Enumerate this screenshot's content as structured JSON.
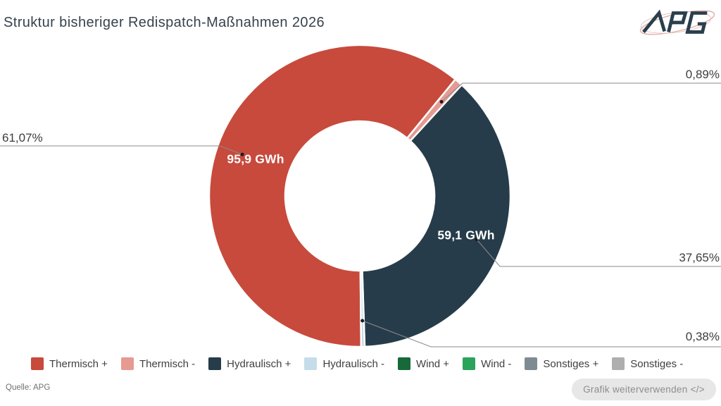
{
  "header": {
    "title": "Struktur bisheriger Redispatch-Maßnahmen 2026",
    "logo": "APG"
  },
  "chart_data": {
    "type": "pie",
    "subtype": "donut",
    "title": "Struktur bisheriger Redispatch-Maßnahmen 2026",
    "unit": "GWh",
    "legend_position": "bottom",
    "start_angle_deg": 179.5,
    "series": [
      {
        "name": "Thermisch +",
        "percent": 61.07,
        "percent_label": "61,07%",
        "value_label": "95,9 GWh",
        "color": "#c74a3c"
      },
      {
        "name": "Thermisch -",
        "percent": 0.89,
        "percent_label": "0,89%",
        "value_label": "",
        "color": "#e59a92"
      },
      {
        "name": "Hydraulisch +",
        "percent": 37.65,
        "percent_label": "37,65%",
        "value_label": "59,1 GWh",
        "color": "#263c4a"
      },
      {
        "name": "Hydraulisch -",
        "percent": 0.38,
        "percent_label": "0,38%",
        "value_label": "",
        "color": "#c5dcea"
      },
      {
        "name": "Wind +",
        "percent": 0,
        "percent_label": "",
        "value_label": "",
        "color": "#17693a"
      },
      {
        "name": "Wind -",
        "percent": 0,
        "percent_label": "",
        "value_label": "",
        "color": "#2aa45a"
      },
      {
        "name": "Sonstiges +",
        "percent": 0,
        "percent_label": "",
        "value_label": "",
        "color": "#7f8b93"
      },
      {
        "name": "Sonstiges -",
        "percent": 0,
        "percent_label": "",
        "value_label": "",
        "color": "#aeaeae"
      }
    ]
  },
  "footer": {
    "source": "Quelle: APG",
    "reuse_button_label": "Grafik weiterverwenden </>"
  }
}
